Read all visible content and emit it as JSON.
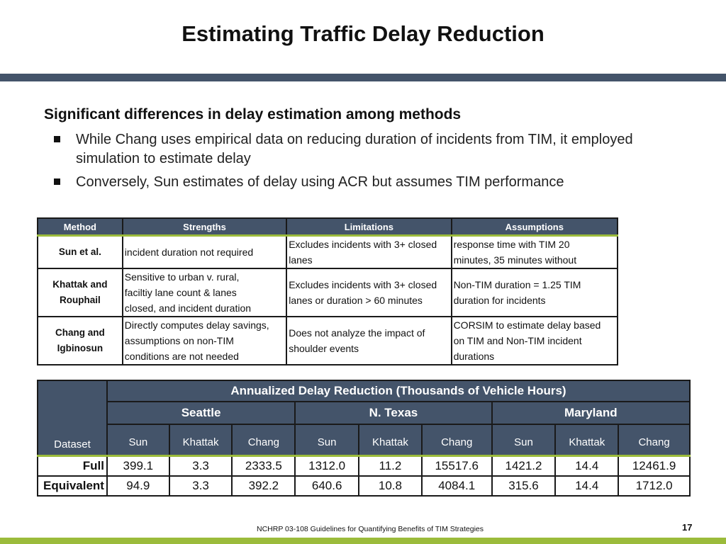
{
  "slide": {
    "title": "Estimating Traffic Delay Reduction",
    "heading": "Significant differences in delay estimation among methods",
    "bullets": [
      "While Chang uses empirical data on reducing duration of incidents from TIM, it employed simulation to estimate delay",
      "Conversely, Sun estimates of delay using ACR but assumes TIM performance"
    ]
  },
  "comparison_table": {
    "headers": [
      "Method",
      "Strengths",
      "Limitations",
      "Assumptions"
    ],
    "rows": [
      {
        "method": [
          "Sun et al."
        ],
        "strengths": [
          "incident duration not required"
        ],
        "limitations": [
          "Excludes incidents with 3+ closed",
          "lanes"
        ],
        "assumptions": [
          "response time with TIM 20",
          "minutes, 35 minutes without"
        ]
      },
      {
        "method": [
          "Khattak and",
          "Rouphail"
        ],
        "strengths": [
          "Sensitive to urban v. rural,",
          "faciltiy lane count & lanes",
          "closed, and incident duration"
        ],
        "limitations": [
          "Excludes incidents with 3+ closed",
          "lanes or duration > 60 minutes"
        ],
        "assumptions": [
          "Non-TIM duration = 1.25 TIM",
          "duration for incidents"
        ]
      },
      {
        "method": [
          "Chang and",
          "Igbinosun"
        ],
        "strengths": [
          "Directly computes delay savings,",
          "assumptions on non-TIM",
          "conditions are not needed"
        ],
        "limitations": [
          "Does not analyze the impact of",
          "shoulder events"
        ],
        "assumptions": [
          "CORSIM to estimate delay based",
          "on TIM and Non-TIM incident",
          "durations"
        ]
      }
    ]
  },
  "delay_table": {
    "caption": "Annualized Delay Reduction (Thousands of Vehicle Hours)",
    "dataset_label": "Dataset",
    "regions": [
      "Seattle",
      "N. Texas",
      "Maryland"
    ],
    "methods": [
      "Sun",
      "Khattak",
      "Chang"
    ],
    "rows": [
      {
        "label": "Full",
        "values": [
          "399.1",
          "3.3",
          "2333.5",
          "1312.0",
          "11.2",
          "15517.6",
          "1421.2",
          "14.4",
          "12461.9"
        ]
      },
      {
        "label": "Equivalent",
        "values": [
          "94.9",
          "3.3",
          "392.2",
          "640.6",
          "10.8",
          "4084.1",
          "315.6",
          "14.4",
          "1712.0"
        ]
      }
    ]
  },
  "footer": {
    "text": "NCHRP 03-108 Guidelines for Quantifying Benefits of TIM Strategies",
    "page_number": "17"
  }
}
